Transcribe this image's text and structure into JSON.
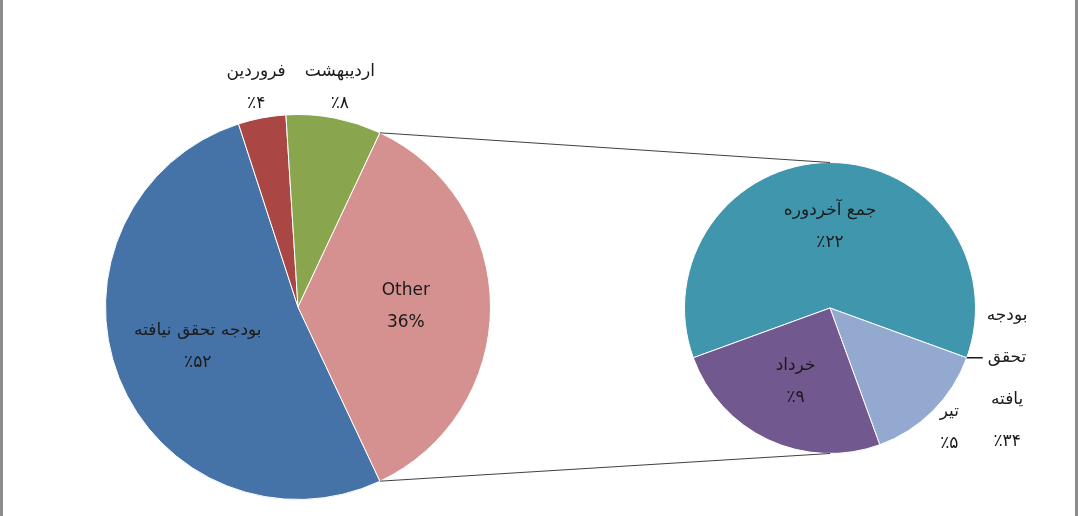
{
  "chart_data": [
    {
      "type": "pie",
      "categories": [
        "بودجه تحقق نیافته",
        "فروردین",
        "اردیبهشت",
        "Other"
      ],
      "values": [
        52,
        4,
        8,
        36
      ],
      "colors": [
        "#4572a7",
        "#aa4643",
        "#89a54e",
        "#d4918f"
      ],
      "value_labels": [
        "٪۵۲",
        "٪۴",
        "٪۸",
        "36%"
      ]
    },
    {
      "type": "pie",
      "categories": [
        "جمع آخردوره",
        "تیر",
        "خرداد"
      ],
      "values": [
        22,
        5,
        9
      ],
      "colors": [
        "#4096ad",
        "#93a9cf",
        "#71588f"
      ],
      "value_labels": [
        "٪۲۲",
        "٪۵",
        "٪۹"
      ],
      "annotations": [
        "بودجه تحقق یافته ٪۳۴"
      ]
    }
  ]
}
